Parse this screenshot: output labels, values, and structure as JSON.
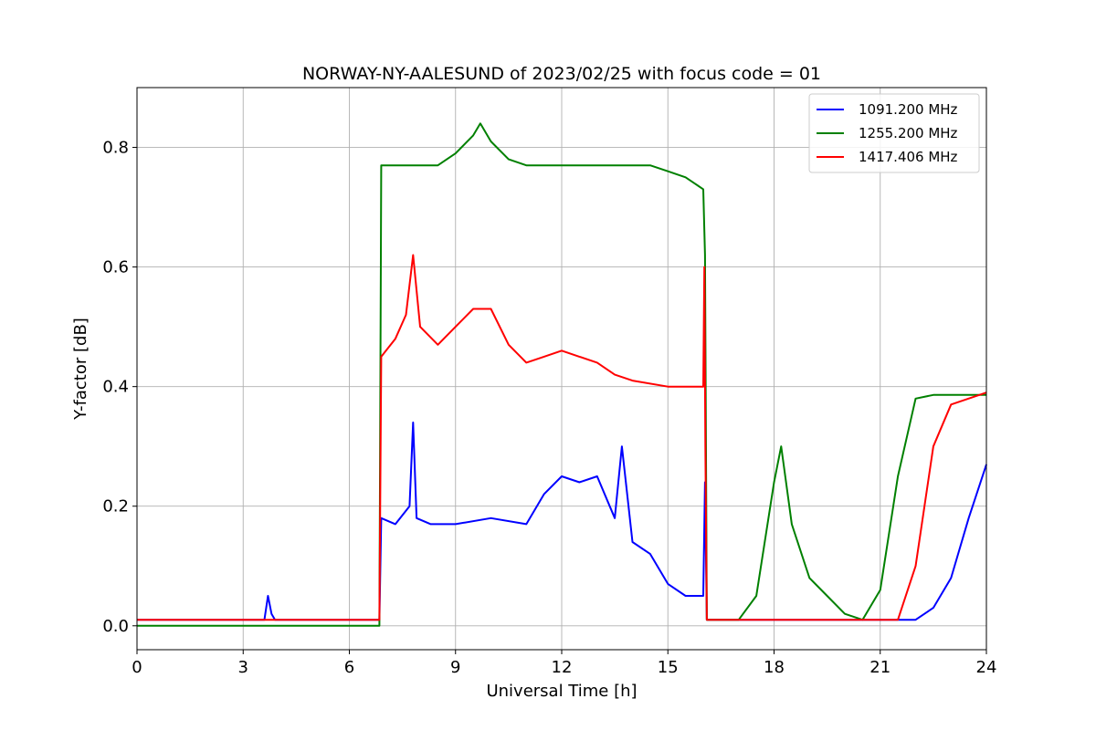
{
  "chart_data": {
    "type": "line",
    "title": "NORWAY-NY-AALESUND of 2023/02/25 with focus code = 01",
    "xlabel": "Universal Time [h]",
    "ylabel": "Y-factor [dB]",
    "xlim": [
      0,
      24
    ],
    "ylim": [
      -0.04,
      0.9
    ],
    "xticks": [
      0,
      3,
      6,
      9,
      12,
      15,
      18,
      21,
      24
    ],
    "xtick_labels": [
      "0",
      "3",
      "6",
      "9",
      "12",
      "15",
      "18",
      "21",
      "24"
    ],
    "yticks": [
      0.0,
      0.2,
      0.4,
      0.6,
      0.8
    ],
    "ytick_labels": [
      "0.0",
      "0.2",
      "0.4",
      "0.6",
      "0.8"
    ],
    "grid": true,
    "legend_position": "top-right",
    "series": [
      {
        "name": "1091.200 MHz",
        "color": "#0000ff",
        "x": [
          0,
          3.6,
          3.7,
          3.8,
          3.9,
          4.0,
          6.85,
          6.9,
          7.3,
          7.7,
          7.8,
          7.9,
          8.3,
          9.0,
          10.0,
          11.0,
          11.5,
          12.0,
          12.5,
          13.0,
          13.5,
          13.7,
          14.0,
          14.5,
          15.0,
          15.5,
          16.0,
          16.05,
          16.1,
          22.0,
          22.5,
          23.0,
          23.5,
          24.0
        ],
        "y": [
          0.01,
          0.01,
          0.05,
          0.02,
          0.01,
          0.01,
          0.01,
          0.18,
          0.17,
          0.2,
          0.34,
          0.18,
          0.17,
          0.17,
          0.18,
          0.17,
          0.22,
          0.25,
          0.24,
          0.25,
          0.18,
          0.3,
          0.14,
          0.12,
          0.07,
          0.05,
          0.05,
          0.24,
          0.01,
          0.01,
          0.03,
          0.08,
          0.18,
          0.27
        ]
      },
      {
        "name": "1255.200 MHz",
        "color": "#008000",
        "x": [
          0,
          6.85,
          6.9,
          8.5,
          9.0,
          9.5,
          9.7,
          10.0,
          10.5,
          11.0,
          14.0,
          14.5,
          15.0,
          15.5,
          16.0,
          16.05,
          16.1,
          17.0,
          17.5,
          18.0,
          18.2,
          18.5,
          19.0,
          19.5,
          20.0,
          20.5,
          21.0,
          21.5,
          22.0,
          22.5,
          23.0,
          24.0
        ],
        "y": [
          0.0,
          0.0,
          0.77,
          0.77,
          0.79,
          0.82,
          0.84,
          0.81,
          0.78,
          0.77,
          0.77,
          0.77,
          0.76,
          0.75,
          0.73,
          0.62,
          0.01,
          0.01,
          0.05,
          0.24,
          0.3,
          0.17,
          0.08,
          0.05,
          0.02,
          0.01,
          0.06,
          0.25,
          0.38,
          0.386,
          0.386,
          0.386
        ]
      },
      {
        "name": "1417.406 MHz",
        "color": "#ff0000",
        "x": [
          0,
          6.85,
          6.9,
          7.3,
          7.6,
          7.8,
          8.0,
          8.5,
          9.0,
          9.5,
          10.0,
          10.5,
          11.0,
          11.5,
          12.0,
          12.5,
          13.0,
          13.5,
          14.0,
          15.0,
          16.0,
          16.03,
          16.06,
          16.1,
          21.0,
          21.5,
          22.0,
          22.5,
          23.0,
          24.0
        ],
        "y": [
          0.01,
          0.01,
          0.45,
          0.48,
          0.52,
          0.62,
          0.5,
          0.47,
          0.5,
          0.53,
          0.53,
          0.47,
          0.44,
          0.45,
          0.46,
          0.45,
          0.44,
          0.42,
          0.41,
          0.4,
          0.4,
          0.6,
          0.3,
          0.01,
          0.01,
          0.01,
          0.1,
          0.3,
          0.37,
          0.39
        ]
      }
    ]
  }
}
